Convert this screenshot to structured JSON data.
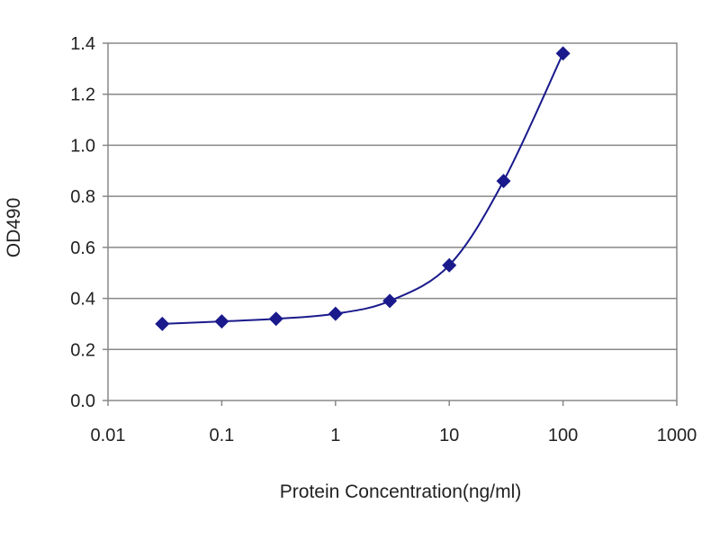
{
  "chart_data": {
    "type": "line",
    "title": "",
    "xlabel": "Protein Concentration(ng/ml)",
    "ylabel": "OD490",
    "x_scale": "log",
    "xlim": [
      0.01,
      1000
    ],
    "ylim": [
      0,
      1.4
    ],
    "x_ticks": [
      "0.01",
      "0.1",
      "1",
      "10",
      "100",
      "1000"
    ],
    "y_ticks": [
      "0.0",
      "0.2",
      "0.4",
      "0.6",
      "0.8",
      "1.0",
      "1.2",
      "1.4"
    ],
    "grid": "horizontal",
    "legend": "none",
    "series": [
      {
        "color": "#1a1a8c",
        "marker": "diamond",
        "smooth": true,
        "points": [
          {
            "x": 0.03,
            "y": 0.3
          },
          {
            "x": 0.1,
            "y": 0.31
          },
          {
            "x": 0.3,
            "y": 0.32
          },
          {
            "x": 1,
            "y": 0.34
          },
          {
            "x": 3,
            "y": 0.39
          },
          {
            "x": 10,
            "y": 0.53
          },
          {
            "x": 30,
            "y": 0.86
          },
          {
            "x": 100,
            "y": 1.36
          }
        ]
      }
    ]
  }
}
